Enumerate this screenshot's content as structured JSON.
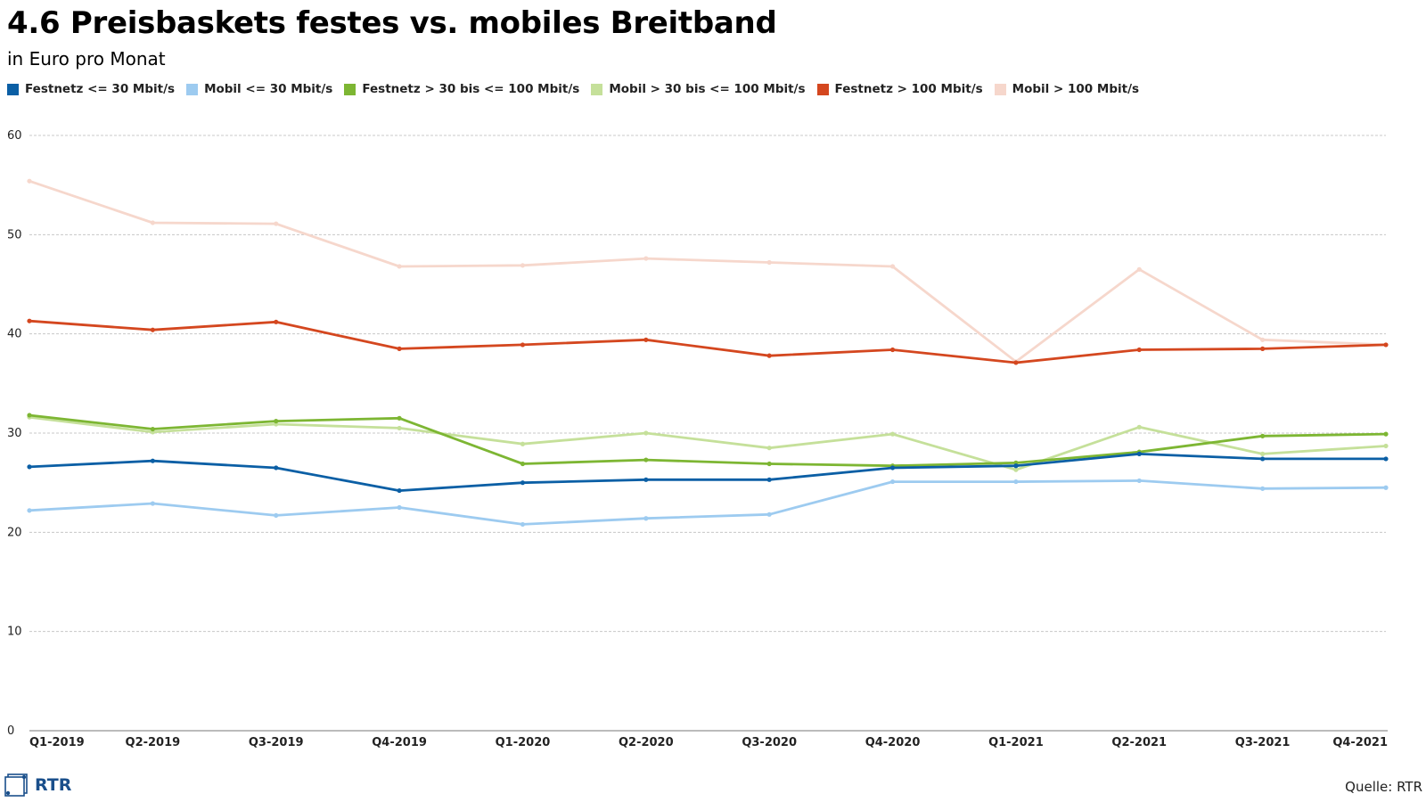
{
  "title": "4.6 Preisbaskets festes vs. mobiles Breitband",
  "subtitle": "in Euro pro Monat",
  "source": "Quelle: RTR",
  "logo": {
    "text": "RTR",
    "color": "#1a4f8b"
  },
  "chart_data": {
    "type": "line",
    "title": "4.6 Preisbaskets festes vs. mobiles Breitband",
    "subtitle": "in Euro pro Monat",
    "xlabel": "",
    "ylabel": "",
    "ylim": [
      0,
      60
    ],
    "yticks": [
      0,
      10,
      20,
      30,
      40,
      50,
      60
    ],
    "grid": true,
    "legend_position": "top-left",
    "categories": [
      "Q1-2019",
      "Q2-2019",
      "Q3-2019",
      "Q4-2019",
      "Q1-2020",
      "Q2-2020",
      "Q3-2020",
      "Q4-2020",
      "Q1-2021",
      "Q2-2021",
      "Q3-2021",
      "Q4-2021"
    ],
    "series": [
      {
        "name": "Festnetz <= 30 Mbit/s",
        "color": "#0b5fa5",
        "values": [
          26.6,
          27.2,
          26.5,
          24.2,
          25.0,
          25.3,
          25.3,
          26.5,
          26.7,
          27.9,
          27.4,
          27.4
        ]
      },
      {
        "name": "Mobil <= 30 Mbit/s",
        "color": "#9dcbf0",
        "values": [
          22.2,
          22.9,
          21.7,
          22.5,
          20.8,
          21.4,
          21.8,
          25.1,
          25.1,
          25.2,
          24.4,
          24.5
        ]
      },
      {
        "name": "Festnetz > 30 bis <= 100 Mbit/s",
        "color": "#7db633",
        "values": [
          31.8,
          30.4,
          31.2,
          31.5,
          26.9,
          27.3,
          26.9,
          26.7,
          27.0,
          28.1,
          29.7,
          29.9
        ]
      },
      {
        "name": "Mobil > 30 bis <= 100 Mbit/s",
        "color": "#c5e09a",
        "values": [
          31.6,
          30.1,
          30.9,
          30.5,
          28.9,
          30.0,
          28.5,
          29.9,
          26.3,
          30.6,
          27.9,
          28.7
        ]
      },
      {
        "name": "Festnetz > 100 Mbit/s",
        "color": "#d4471f",
        "values": [
          41.3,
          40.4,
          41.2,
          38.5,
          38.9,
          39.4,
          37.8,
          38.4,
          37.1,
          38.4,
          38.5,
          38.9
        ]
      },
      {
        "name": "Mobil > 100 Mbit/s",
        "color": "#f6d7cc",
        "values": [
          55.4,
          51.2,
          51.1,
          46.8,
          46.9,
          47.6,
          47.2,
          46.8,
          37.2,
          46.5,
          39.4,
          38.9
        ]
      }
    ]
  }
}
